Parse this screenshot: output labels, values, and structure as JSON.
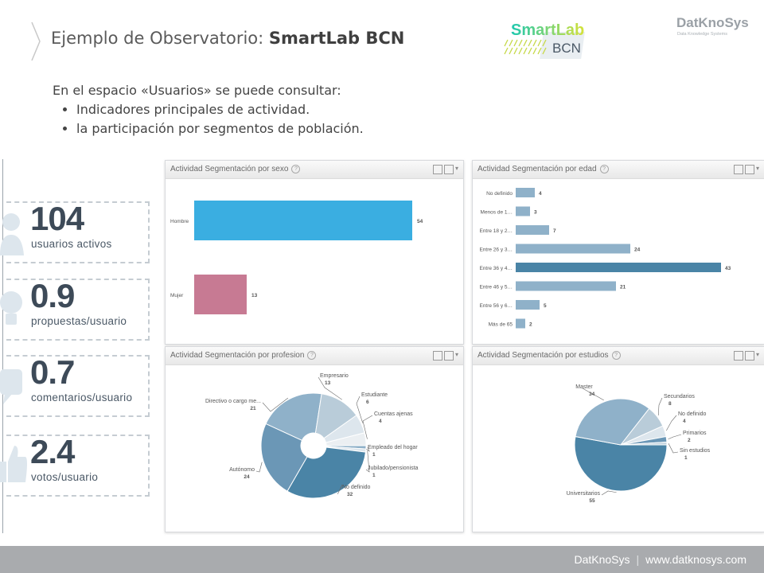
{
  "header": {
    "title_prefix": "Ejemplo de Observatorio: ",
    "title_bold": "SmartLab BCN",
    "logo_smartlab_line1": "SmartLab",
    "logo_smartlab_line2": "BCN",
    "logo_datknosys": "DatKnoSys",
    "logo_datknosys_tagline": "Data Knowledge Systems"
  },
  "intro": {
    "lead": "En el espacio «Usuarios» se puede consultar:",
    "bullets": [
      "Indicadores principales de actividad.",
      "la participación por segmentos de población."
    ]
  },
  "kpis": [
    {
      "value": "104",
      "label": "usuarios activos",
      "icon": "users-icon"
    },
    {
      "value": "0.9",
      "label": "propuestas/usuario",
      "icon": "lightbulb-icon"
    },
    {
      "value": "0.7",
      "label": "comentarios/usuario",
      "icon": "speech-bubble-icon"
    },
    {
      "value": "2.4",
      "label": "votos/usuario",
      "icon": "thumbs-up-icon"
    }
  ],
  "panels": {
    "sexo": "Actividad Segmentación por sexo",
    "edad": "Actividad Segmentación por edad",
    "profesion": "Actividad Segmentación por profesion",
    "estudios": "Actividad Segmentación por estudios",
    "help": "?",
    "dropdown": "▾"
  },
  "footer": {
    "brand": "DatKnoSys",
    "separator": "|",
    "url": "www.datknosys.com"
  },
  "colors": {
    "hombre": "#3aaee1",
    "mujer": "#c77a93",
    "edad_bar": "#8fb1c9",
    "edad_bar_max": "#4a84a6",
    "pie_dark": "#4a84a6",
    "pie_mid": "#8fb1c9",
    "pie_light": "#b9ccd9",
    "pie_pale": "#dde6ed"
  },
  "chart_data": [
    {
      "type": "bar",
      "orientation": "horizontal",
      "categories": [
        "Hombre",
        "Mujer"
      ],
      "values": [
        54,
        13
      ],
      "xlim": [
        0,
        54
      ],
      "grid": false
    },
    {
      "type": "bar",
      "orientation": "horizontal",
      "categories": [
        "No definido",
        "Menos de 18",
        "Entre 18 y 25",
        "Entre 26 y 35",
        "Entre 36 y 45",
        "Entre 46 y 55",
        "Entre 56 y 65",
        "Más de 65"
      ],
      "category_labels": [
        "No definido",
        "Menos de 1…",
        "Entre 18 y 2…",
        "Entre 26 y 3…",
        "Entre 36 y 4…",
        "Entre 46 y 5…",
        "Entre 56 y 6…",
        "Más de 65"
      ],
      "values": [
        4,
        3,
        7,
        24,
        43,
        21,
        5,
        2
      ],
      "xlim": [
        0,
        43
      ],
      "grid": false
    },
    {
      "type": "pie",
      "variant": "donut",
      "categories": [
        "Empleado del hogar",
        "Jubilado/pensionista",
        "No definido",
        "Autónomo",
        "Directivo o cargo medio",
        "Empresario",
        "Estudiante",
        "Cuentas ajenas"
      ],
      "slice_labels": [
        "Empleado del hogar",
        "Jubilado/pensionista",
        "No definido",
        "Autónomo",
        "Directivo o cargo me...",
        "Empresario",
        "Estudiante",
        "Cuentas ajenas"
      ],
      "values": [
        1,
        1,
        32,
        24,
        21,
        13,
        6,
        4
      ]
    },
    {
      "type": "pie",
      "categories": [
        "Universitarios",
        "Master",
        "Secundarios",
        "No definido",
        "Primarios",
        "Sin estudios"
      ],
      "values": [
        55,
        34,
        8,
        4,
        2,
        1
      ]
    }
  ]
}
